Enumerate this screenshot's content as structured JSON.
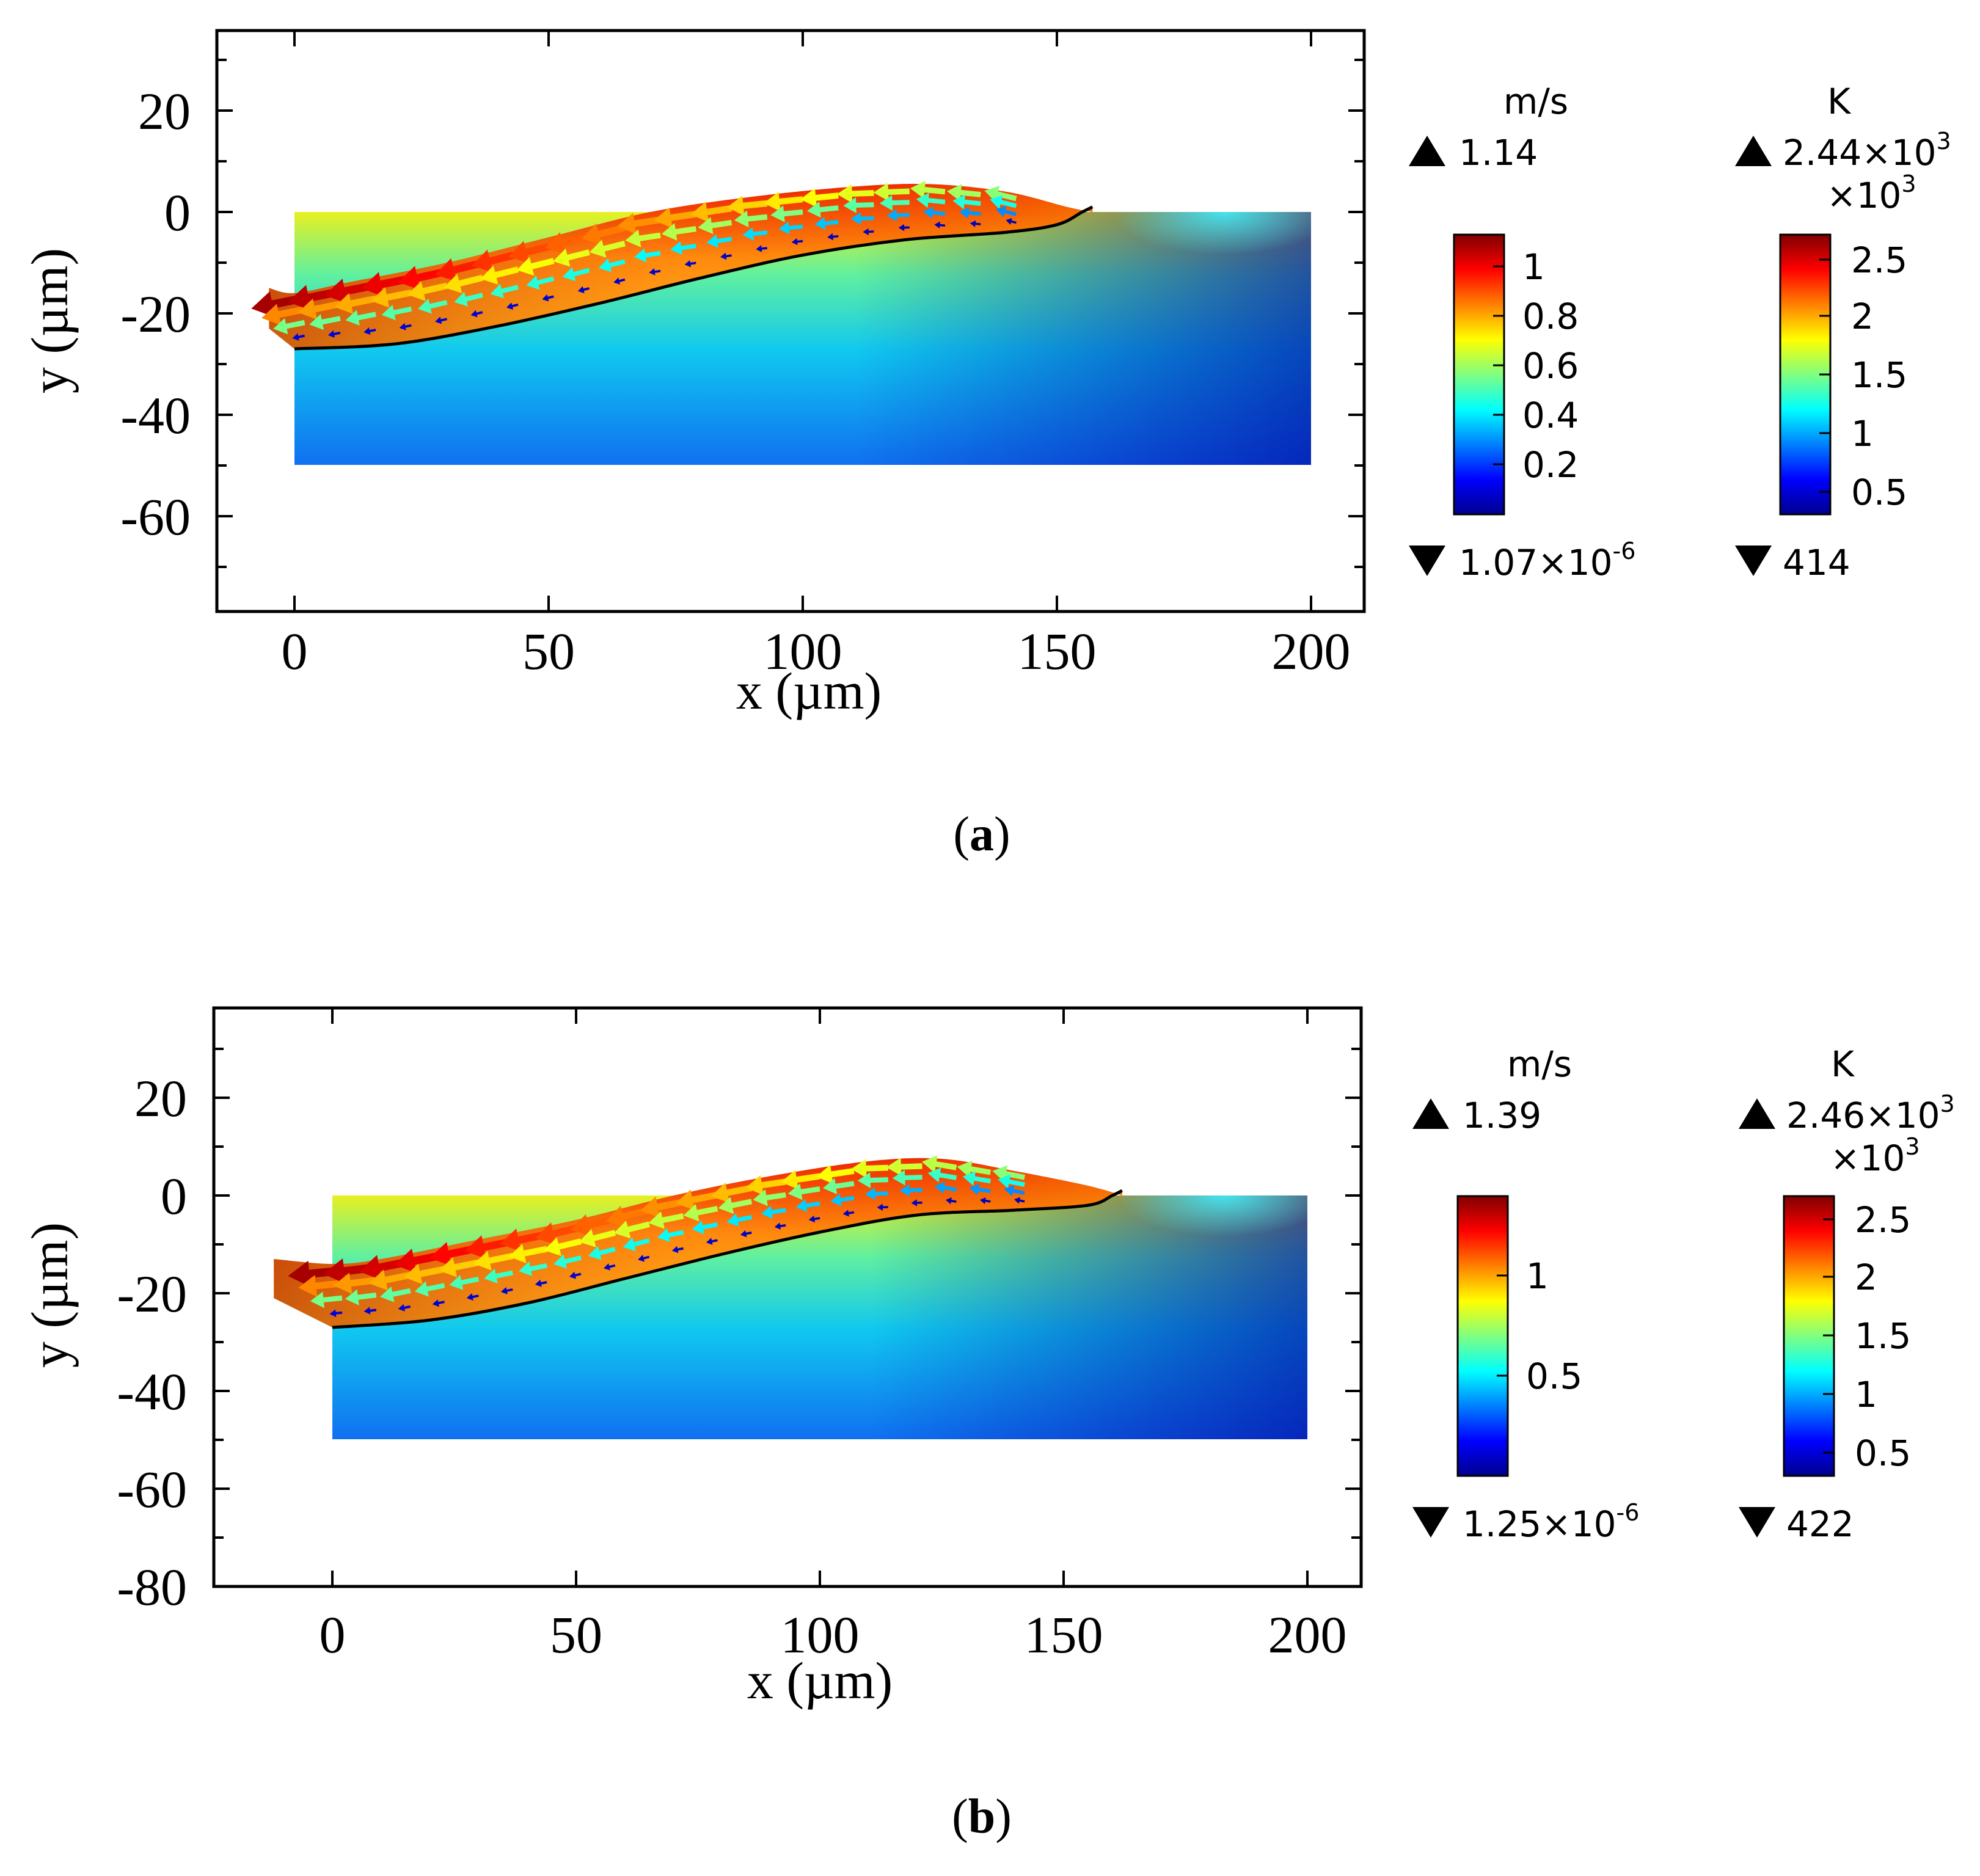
{
  "figure": {
    "panels": [
      {
        "caption": "a",
        "velocity_legend": {
          "unit": "m/s",
          "max_label": "1.14",
          "min_label": "1.07×10",
          "min_exp": "-6"
        },
        "temperature_legend": {
          "unit": "K",
          "max_label": "2.44×10",
          "max_exp": "3",
          "multiplier": "×10",
          "multiplier_exp": "3",
          "min_label": "414"
        }
      },
      {
        "caption": "b",
        "velocity_legend": {
          "unit": "m/s",
          "max_label": "1.39",
          "min_label": "1.25×10",
          "min_exp": "-6"
        },
        "temperature_legend": {
          "unit": "K",
          "max_label": "2.46×10",
          "max_exp": "3",
          "multiplier": "×10",
          "multiplier_exp": "3",
          "min_label": "422"
        }
      }
    ]
  },
  "colors": {
    "jet": [
      "#00008f",
      "#0000ff",
      "#0080ff",
      "#00ffff",
      "#80ff80",
      "#ffff00",
      "#ff8000",
      "#ff0000",
      "#800000"
    ],
    "melt_boundary": "#000000"
  },
  "chart_data": [
    {
      "type": "heatmap",
      "title": "",
      "xlabel": "x (µm)",
      "ylabel": "y (µm)",
      "xlim": [
        -15,
        210
      ],
      "ylim": [
        -78,
        36
      ],
      "xticks": [
        0,
        50,
        100,
        150,
        200
      ],
      "yticks": [
        20,
        0,
        -20,
        -40,
        -60
      ],
      "domain": {
        "x": [
          0,
          200
        ],
        "y_bottom": -50,
        "substrate_top": 0
      },
      "track_surface": [
        [
          -5,
          -15
        ],
        [
          0,
          -16
        ],
        [
          10,
          -14
        ],
        [
          30,
          -10
        ],
        [
          50,
          -5
        ],
        [
          70,
          0
        ],
        [
          90,
          3
        ],
        [
          110,
          5
        ],
        [
          125,
          5.5
        ],
        [
          140,
          4
        ],
        [
          152,
          1
        ],
        [
          157,
          0
        ]
      ],
      "melt_boundary": [
        [
          0,
          -27
        ],
        [
          20,
          -26
        ],
        [
          40,
          -22.5
        ],
        [
          60,
          -18
        ],
        [
          80,
          -13
        ],
        [
          100,
          -8.5
        ],
        [
          120,
          -5.5
        ],
        [
          140,
          -4
        ],
        [
          150,
          -2.5
        ],
        [
          155,
          0
        ],
        [
          157,
          1
        ]
      ],
      "velocity_colorbar": {
        "unit": "m/s",
        "min": 1.07e-06,
        "max": 1.14,
        "ticks": [
          1,
          0.8,
          0.6,
          0.4,
          0.2
        ]
      },
      "temperature_colorbar": {
        "unit": "K",
        "min": 414,
        "max": 2440,
        "scale": 1000,
        "ticks": [
          2.5,
          2,
          1.5,
          1,
          0.5
        ]
      }
    },
    {
      "type": "heatmap",
      "title": "",
      "xlabel": "x (µm)",
      "ylabel": "y (µm)",
      "xlim": [
        -24,
        210
      ],
      "ylim": [
        -80,
        36
      ],
      "xticks": [
        0,
        50,
        100,
        150,
        200
      ],
      "yticks": [
        20,
        0,
        -20,
        -40,
        -60,
        -80
      ],
      "domain": {
        "x": [
          0,
          200
        ],
        "y_bottom": -50,
        "substrate_top": 0
      },
      "track_surface": [
        [
          -12,
          -13
        ],
        [
          0,
          -14
        ],
        [
          10,
          -13
        ],
        [
          30,
          -9
        ],
        [
          50,
          -5
        ],
        [
          70,
          0
        ],
        [
          90,
          4
        ],
        [
          110,
          7
        ],
        [
          125,
          7.5
        ],
        [
          140,
          5
        ],
        [
          155,
          2
        ],
        [
          162,
          0
        ]
      ],
      "melt_boundary": [
        [
          0,
          -27
        ],
        [
          20,
          -25.5
        ],
        [
          40,
          -22
        ],
        [
          60,
          -17
        ],
        [
          80,
          -12
        ],
        [
          100,
          -7.5
        ],
        [
          120,
          -4
        ],
        [
          140,
          -3
        ],
        [
          155,
          -2
        ],
        [
          160,
          0
        ],
        [
          162,
          1
        ]
      ],
      "velocity_colorbar": {
        "unit": "m/s",
        "min": 1.25e-06,
        "max": 1.39,
        "ticks": [
          1,
          0.5
        ]
      },
      "temperature_colorbar": {
        "unit": "K",
        "min": 422,
        "max": 2460,
        "scale": 1000,
        "ticks": [
          2.5,
          2,
          1.5,
          1,
          0.5
        ]
      }
    }
  ]
}
